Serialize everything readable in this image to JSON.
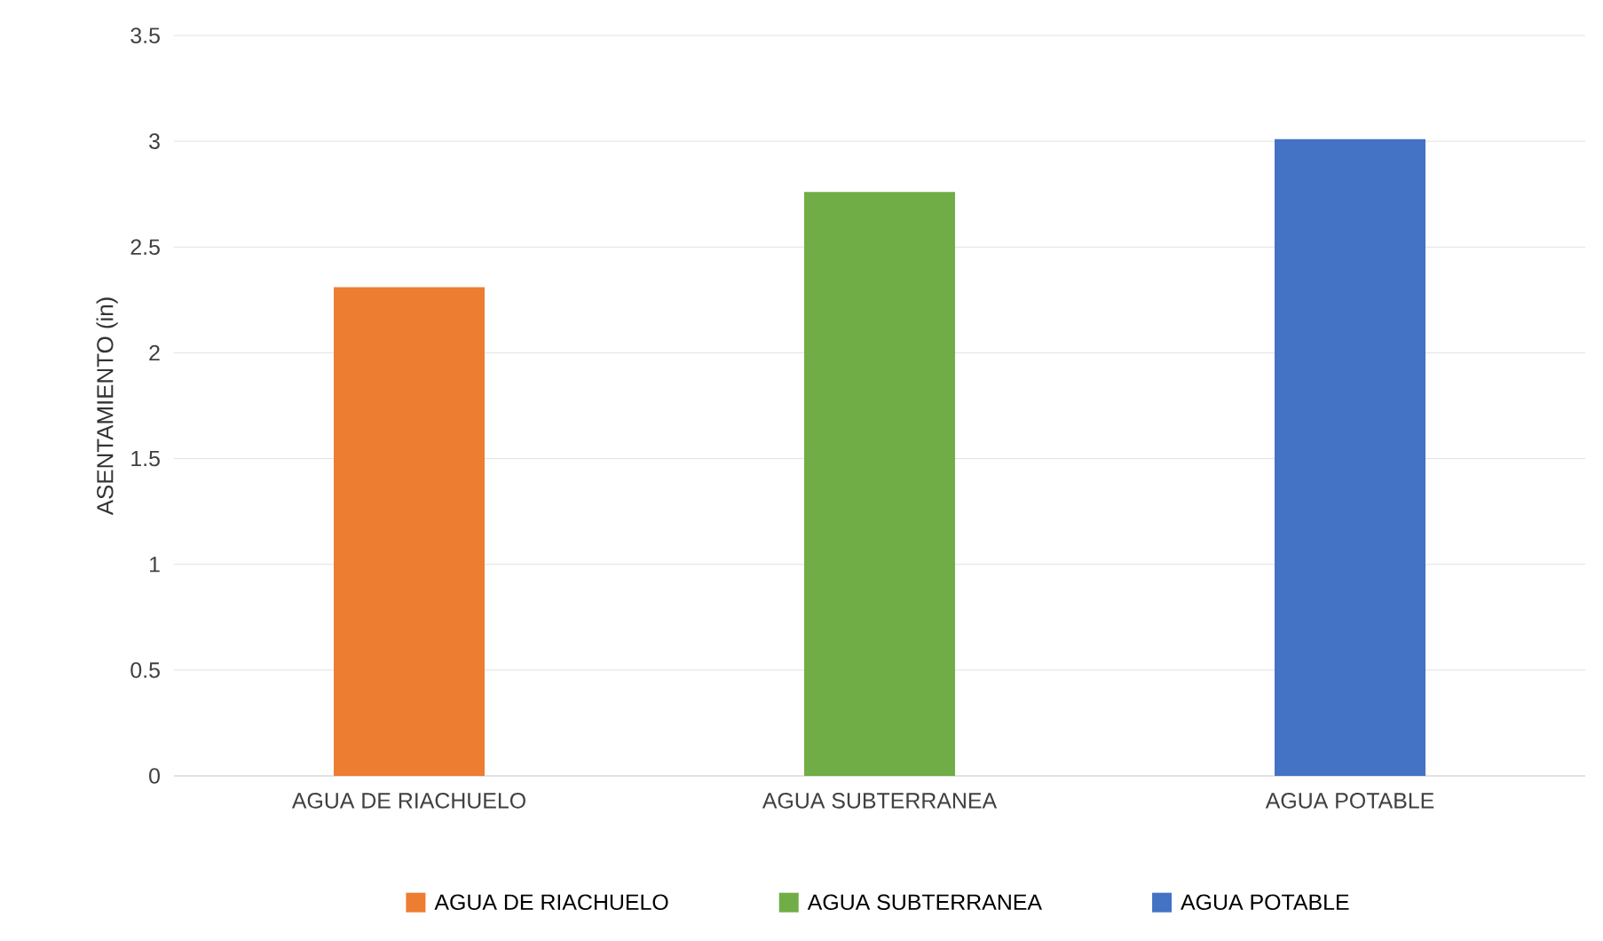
{
  "chart_data": {
    "type": "bar",
    "categories": [
      "AGUA DE RIACHUELO",
      "AGUA SUBTERRANEA",
      "AGUA POTABLE"
    ],
    "series": [
      {
        "name": "AGUA DE RIACHUELO",
        "color": "#ed7d31",
        "values": [
          2.31,
          null,
          null
        ]
      },
      {
        "name": "AGUA SUBTERRANEA",
        "color": "#70ad47",
        "values": [
          null,
          2.76,
          null
        ]
      },
      {
        "name": "AGUA POTABLE",
        "color": "#4472c4",
        "values": [
          null,
          null,
          3.01
        ]
      }
    ],
    "ylabel": "ASENTAMIENTO (in)",
    "ylim": [
      0,
      3.5
    ],
    "yticks": [
      0,
      0.5,
      1,
      1.5,
      2,
      2.5,
      3,
      3.5
    ],
    "grid": "y",
    "legend": "bottom"
  }
}
